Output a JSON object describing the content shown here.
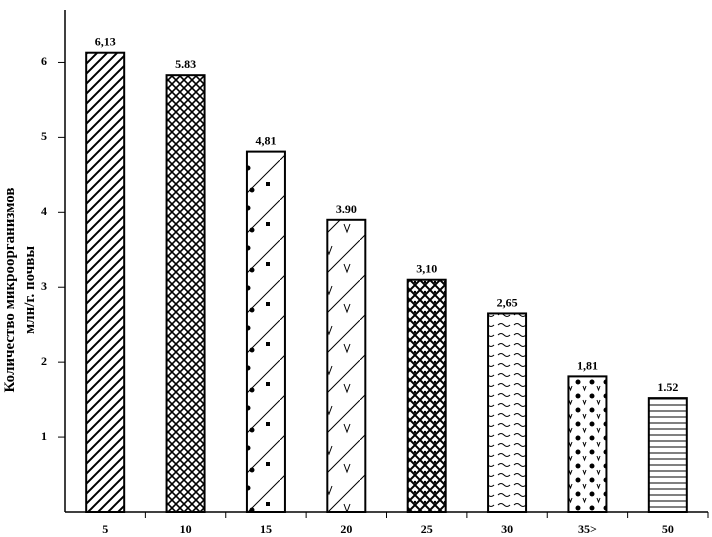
{
  "chart_data": {
    "type": "bar",
    "y_label_lines": [
      "Количество микроорганизмов",
      "млн/г. почвы"
    ],
    "categories": [
      "5",
      "10",
      "15",
      "20",
      "25",
      "30",
      "35>",
      "50"
    ],
    "values": [
      6.13,
      5.83,
      4.81,
      3.9,
      3.1,
      2.65,
      1.81,
      1.52
    ],
    "value_labels": [
      "6,13",
      "5.83",
      "4,81",
      "3.90",
      "3,10",
      "2,65",
      "1,81",
      "1.52"
    ],
    "color": "#000000",
    "ylim": [
      0,
      6.7
    ],
    "yticks": [
      1,
      2,
      3,
      4,
      5,
      6
    ]
  }
}
